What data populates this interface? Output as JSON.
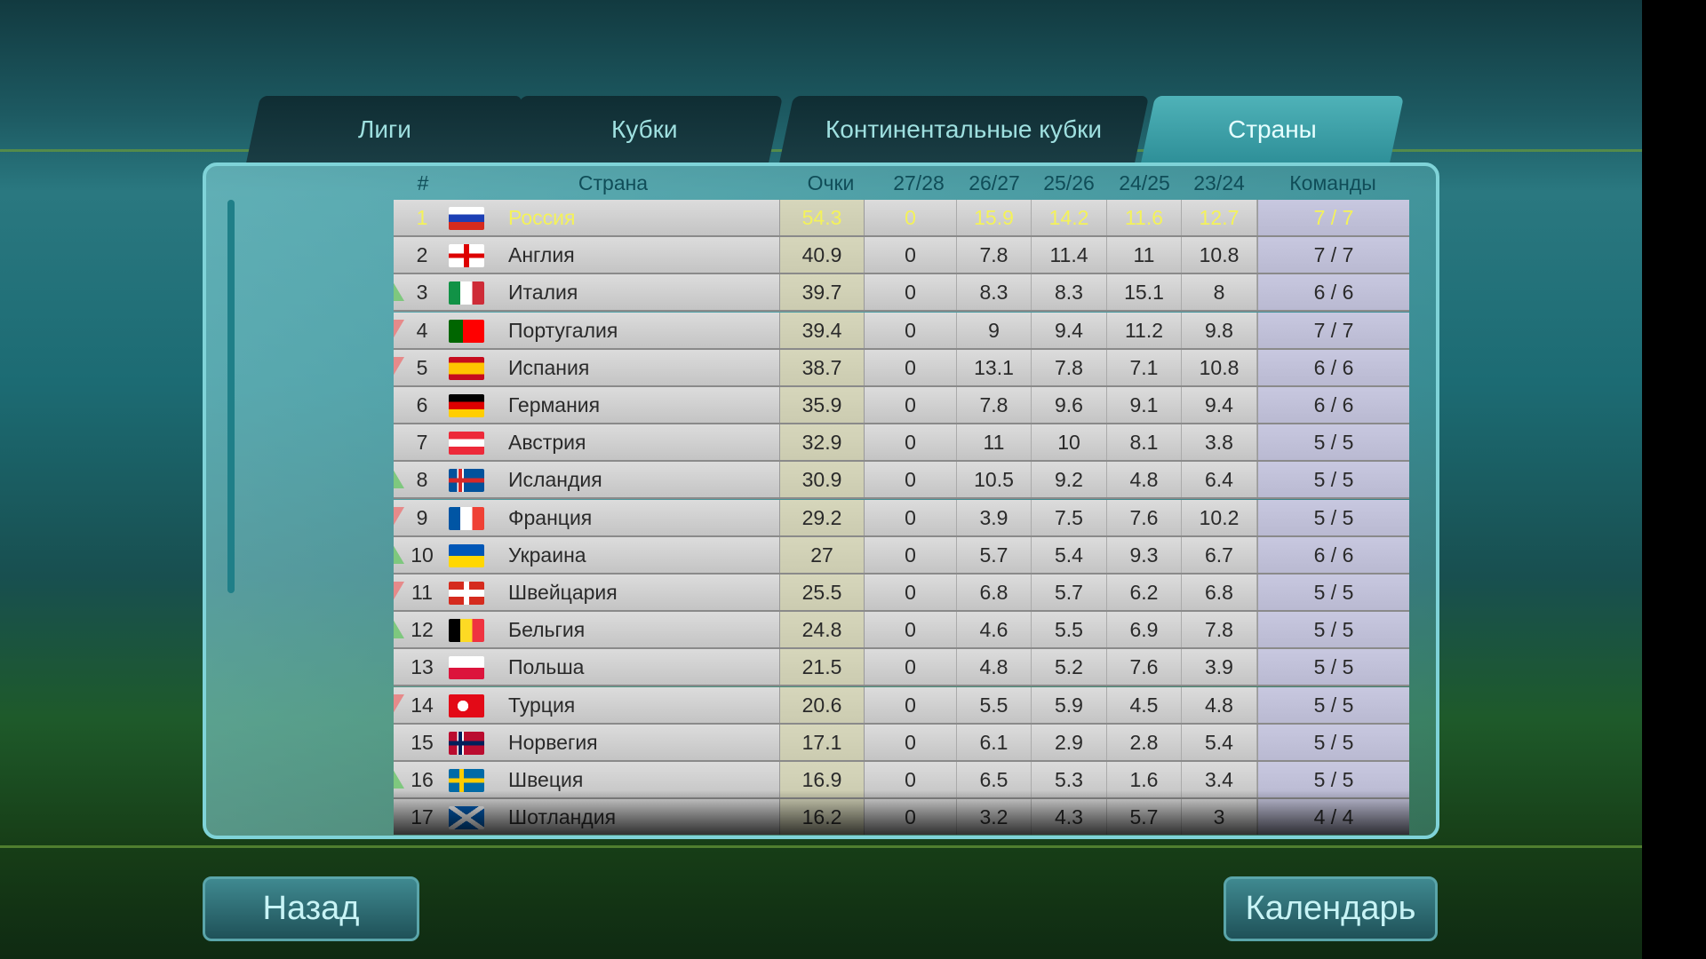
{
  "tabs": [
    {
      "label": "Лиги"
    },
    {
      "label": "Кубки"
    },
    {
      "label": "Континентальные кубки"
    },
    {
      "label": "Страны",
      "active": true
    }
  ],
  "table": {
    "headers": {
      "rank": "#",
      "country": "Страна",
      "points": "Очки",
      "s1": "27/28",
      "s2": "26/27",
      "s3": "25/26",
      "s4": "24/25",
      "s5": "23/24",
      "teams": "Команды"
    },
    "rows": [
      {
        "rank": "1",
        "flag": "russia",
        "country": "Россия",
        "points": "54.3",
        "s1": "0",
        "s2": "15.9",
        "s3": "14.2",
        "s4": "11.6",
        "s5": "12.7",
        "teams": "7 / 7",
        "trend": "none"
      },
      {
        "rank": "2",
        "flag": "england",
        "country": "Англия",
        "points": "40.9",
        "s1": "0",
        "s2": "7.8",
        "s3": "11.4",
        "s4": "11",
        "s5": "10.8",
        "teams": "7 / 7",
        "trend": "none"
      },
      {
        "rank": "3",
        "flag": "italy",
        "country": "Италия",
        "points": "39.7",
        "s1": "0",
        "s2": "8.3",
        "s3": "8.3",
        "s4": "15.1",
        "s5": "8",
        "teams": "6 / 6",
        "trend": "up"
      },
      {
        "rank": "4",
        "flag": "portugal",
        "country": "Португалия",
        "points": "39.4",
        "s1": "0",
        "s2": "9",
        "s3": "9.4",
        "s4": "11.2",
        "s5": "9.8",
        "teams": "7 / 7",
        "trend": "down"
      },
      {
        "rank": "5",
        "flag": "spain",
        "country": "Испания",
        "points": "38.7",
        "s1": "0",
        "s2": "13.1",
        "s3": "7.8",
        "s4": "7.1",
        "s5": "10.8",
        "teams": "6 / 6",
        "trend": "down"
      },
      {
        "rank": "6",
        "flag": "germany",
        "country": "Германия",
        "points": "35.9",
        "s1": "0",
        "s2": "7.8",
        "s3": "9.6",
        "s4": "9.1",
        "s5": "9.4",
        "teams": "6 / 6",
        "trend": "none"
      },
      {
        "rank": "7",
        "flag": "austria",
        "country": "Австрия",
        "points": "32.9",
        "s1": "0",
        "s2": "11",
        "s3": "10",
        "s4": "8.1",
        "s5": "3.8",
        "teams": "5 / 5",
        "trend": "none"
      },
      {
        "rank": "8",
        "flag": "iceland",
        "country": "Исландия",
        "points": "30.9",
        "s1": "0",
        "s2": "10.5",
        "s3": "9.2",
        "s4": "4.8",
        "s5": "6.4",
        "teams": "5 / 5",
        "trend": "up"
      },
      {
        "rank": "9",
        "flag": "france",
        "country": "Франция",
        "points": "29.2",
        "s1": "0",
        "s2": "3.9",
        "s3": "7.5",
        "s4": "7.6",
        "s5": "10.2",
        "teams": "5 / 5",
        "trend": "down"
      },
      {
        "rank": "10",
        "flag": "ukraine",
        "country": "Украина",
        "points": "27",
        "s1": "0",
        "s2": "5.7",
        "s3": "5.4",
        "s4": "9.3",
        "s5": "6.7",
        "teams": "6 / 6",
        "trend": "up"
      },
      {
        "rank": "11",
        "flag": "switzerland",
        "country": "Швейцария",
        "points": "25.5",
        "s1": "0",
        "s2": "6.8",
        "s3": "5.7",
        "s4": "6.2",
        "s5": "6.8",
        "teams": "5 / 5",
        "trend": "down"
      },
      {
        "rank": "12",
        "flag": "belgium",
        "country": "Бельгия",
        "points": "24.8",
        "s1": "0",
        "s2": "4.6",
        "s3": "5.5",
        "s4": "6.9",
        "s5": "7.8",
        "teams": "5 / 5",
        "trend": "up"
      },
      {
        "rank": "13",
        "flag": "poland",
        "country": "Польша",
        "points": "21.5",
        "s1": "0",
        "s2": "4.8",
        "s3": "5.2",
        "s4": "7.6",
        "s5": "3.9",
        "teams": "5 / 5",
        "trend": "none"
      },
      {
        "rank": "14",
        "flag": "turkey",
        "country": "Турция",
        "points": "20.6",
        "s1": "0",
        "s2": "5.5",
        "s3": "5.9",
        "s4": "4.5",
        "s5": "4.8",
        "teams": "5 / 5",
        "trend": "down"
      },
      {
        "rank": "15",
        "flag": "norway",
        "country": "Норвегия",
        "points": "17.1",
        "s1": "0",
        "s2": "6.1",
        "s3": "2.9",
        "s4": "2.8",
        "s5": "5.4",
        "teams": "5 / 5",
        "trend": "none"
      },
      {
        "rank": "16",
        "flag": "sweden",
        "country": "Швеция",
        "points": "16.9",
        "s1": "0",
        "s2": "6.5",
        "s3": "5.3",
        "s4": "1.6",
        "s5": "3.4",
        "teams": "5 / 5",
        "trend": "up"
      },
      {
        "rank": "17",
        "flag": "scotland",
        "country": "Шотландия",
        "points": "16.2",
        "s1": "0",
        "s2": "3.2",
        "s3": "4.3",
        "s4": "5.7",
        "s5": "3",
        "teams": "4 / 4",
        "trend": "none"
      }
    ]
  },
  "buttons": {
    "back": "Назад",
    "calendar": "Календарь"
  },
  "colors": {
    "highlight": "#f4f25a",
    "trend_up": "#7ec87e",
    "trend_down": "#e68a8a"
  }
}
